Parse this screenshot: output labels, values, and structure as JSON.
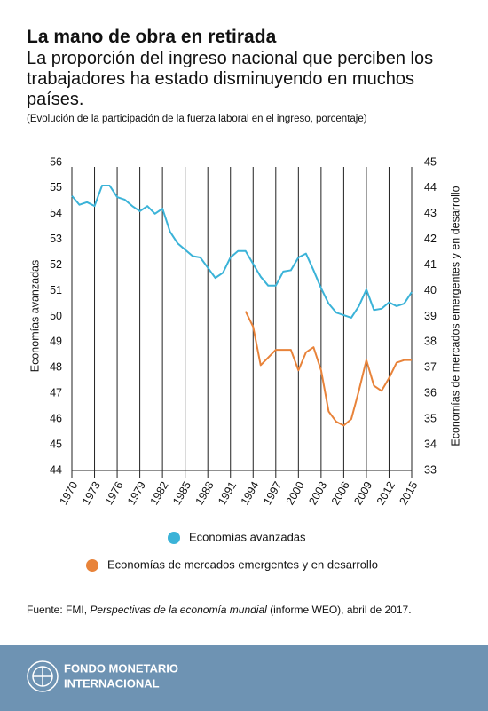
{
  "chart_data": {
    "type": "line",
    "title": "La mano de obra en retirada",
    "subtitle": "La proporción del ingreso nacional que perciben los trabajadores ha estado disminuyendo en muchos países.",
    "note": "(Evolución de la participación de la fuerza laboral en el ingreso, porcentaje)",
    "y_label": "Economías avanzadas",
    "y2_label": "Economías de mercados emergentes y en desarrollo",
    "x": [
      1970,
      1971,
      1972,
      1973,
      1974,
      1975,
      1976,
      1977,
      1978,
      1979,
      1980,
      1981,
      1982,
      1983,
      1984,
      1985,
      1986,
      1987,
      1988,
      1989,
      1990,
      1991,
      1992,
      1993,
      1994,
      1995,
      1996,
      1997,
      1998,
      1999,
      2000,
      2001,
      2002,
      2003,
      2004,
      2005,
      2006,
      2007,
      2008,
      2009,
      2010,
      2011,
      2012,
      2013,
      2014,
      2015
    ],
    "xlim": [
      1970,
      2015
    ],
    "xticks": [
      1970,
      1973,
      1976,
      1979,
      1982,
      1985,
      1988,
      1991,
      1994,
      1997,
      2000,
      2003,
      2006,
      2009,
      2012,
      2015
    ],
    "ylim": [
      44,
      56
    ],
    "yticks": [
      44,
      45,
      46,
      47,
      48,
      49,
      50,
      51,
      52,
      53,
      54,
      55,
      56
    ],
    "y2lim": [
      33,
      45
    ],
    "y2ticks": [
      33,
      34,
      35,
      36,
      37,
      38,
      39,
      40,
      41,
      42,
      43,
      44,
      45
    ],
    "grid": "x",
    "series": [
      {
        "name": "Economías avanzadas",
        "color": "#3bb3d8",
        "values": [
          54.7,
          54.35,
          54.45,
          54.3,
          55.1,
          55.1,
          54.65,
          54.55,
          54.3,
          54.1,
          54.3,
          54.0,
          54.2,
          53.3,
          52.85,
          52.6,
          52.35,
          52.3,
          51.9,
          51.5,
          51.7,
          52.3,
          52.55,
          52.55,
          52.05,
          51.55,
          51.2,
          51.2,
          51.75,
          51.8,
          52.3,
          52.45,
          51.8,
          51.1,
          50.5,
          50.15,
          50.05,
          49.95,
          50.4,
          51.05,
          50.25,
          50.3,
          50.55,
          50.4,
          50.5,
          50.95
        ]
      },
      {
        "name": "Economías de mercados emergentes y en desarrollo",
        "color": "#e8833a",
        "axis": "y2",
        "values": [
          null,
          null,
          null,
          null,
          null,
          null,
          null,
          null,
          null,
          null,
          null,
          null,
          null,
          null,
          null,
          null,
          null,
          null,
          null,
          null,
          null,
          null,
          null,
          39.2,
          38.6,
          37.1,
          37.4,
          37.7,
          37.7,
          37.7,
          36.9,
          37.6,
          37.8,
          36.9,
          35.3,
          34.9,
          34.75,
          35.0,
          36.1,
          37.3,
          36.3,
          36.1,
          36.6,
          37.2,
          37.3,
          37.3
        ]
      }
    ],
    "source": [
      "Fuente: FMI, ",
      "Perspectivas de la economía mundial",
      " (informe WEO), abril de 2017."
    ]
  },
  "footer": {
    "org": [
      "FONDO MONETARIO",
      "INTERNACIONAL"
    ]
  }
}
